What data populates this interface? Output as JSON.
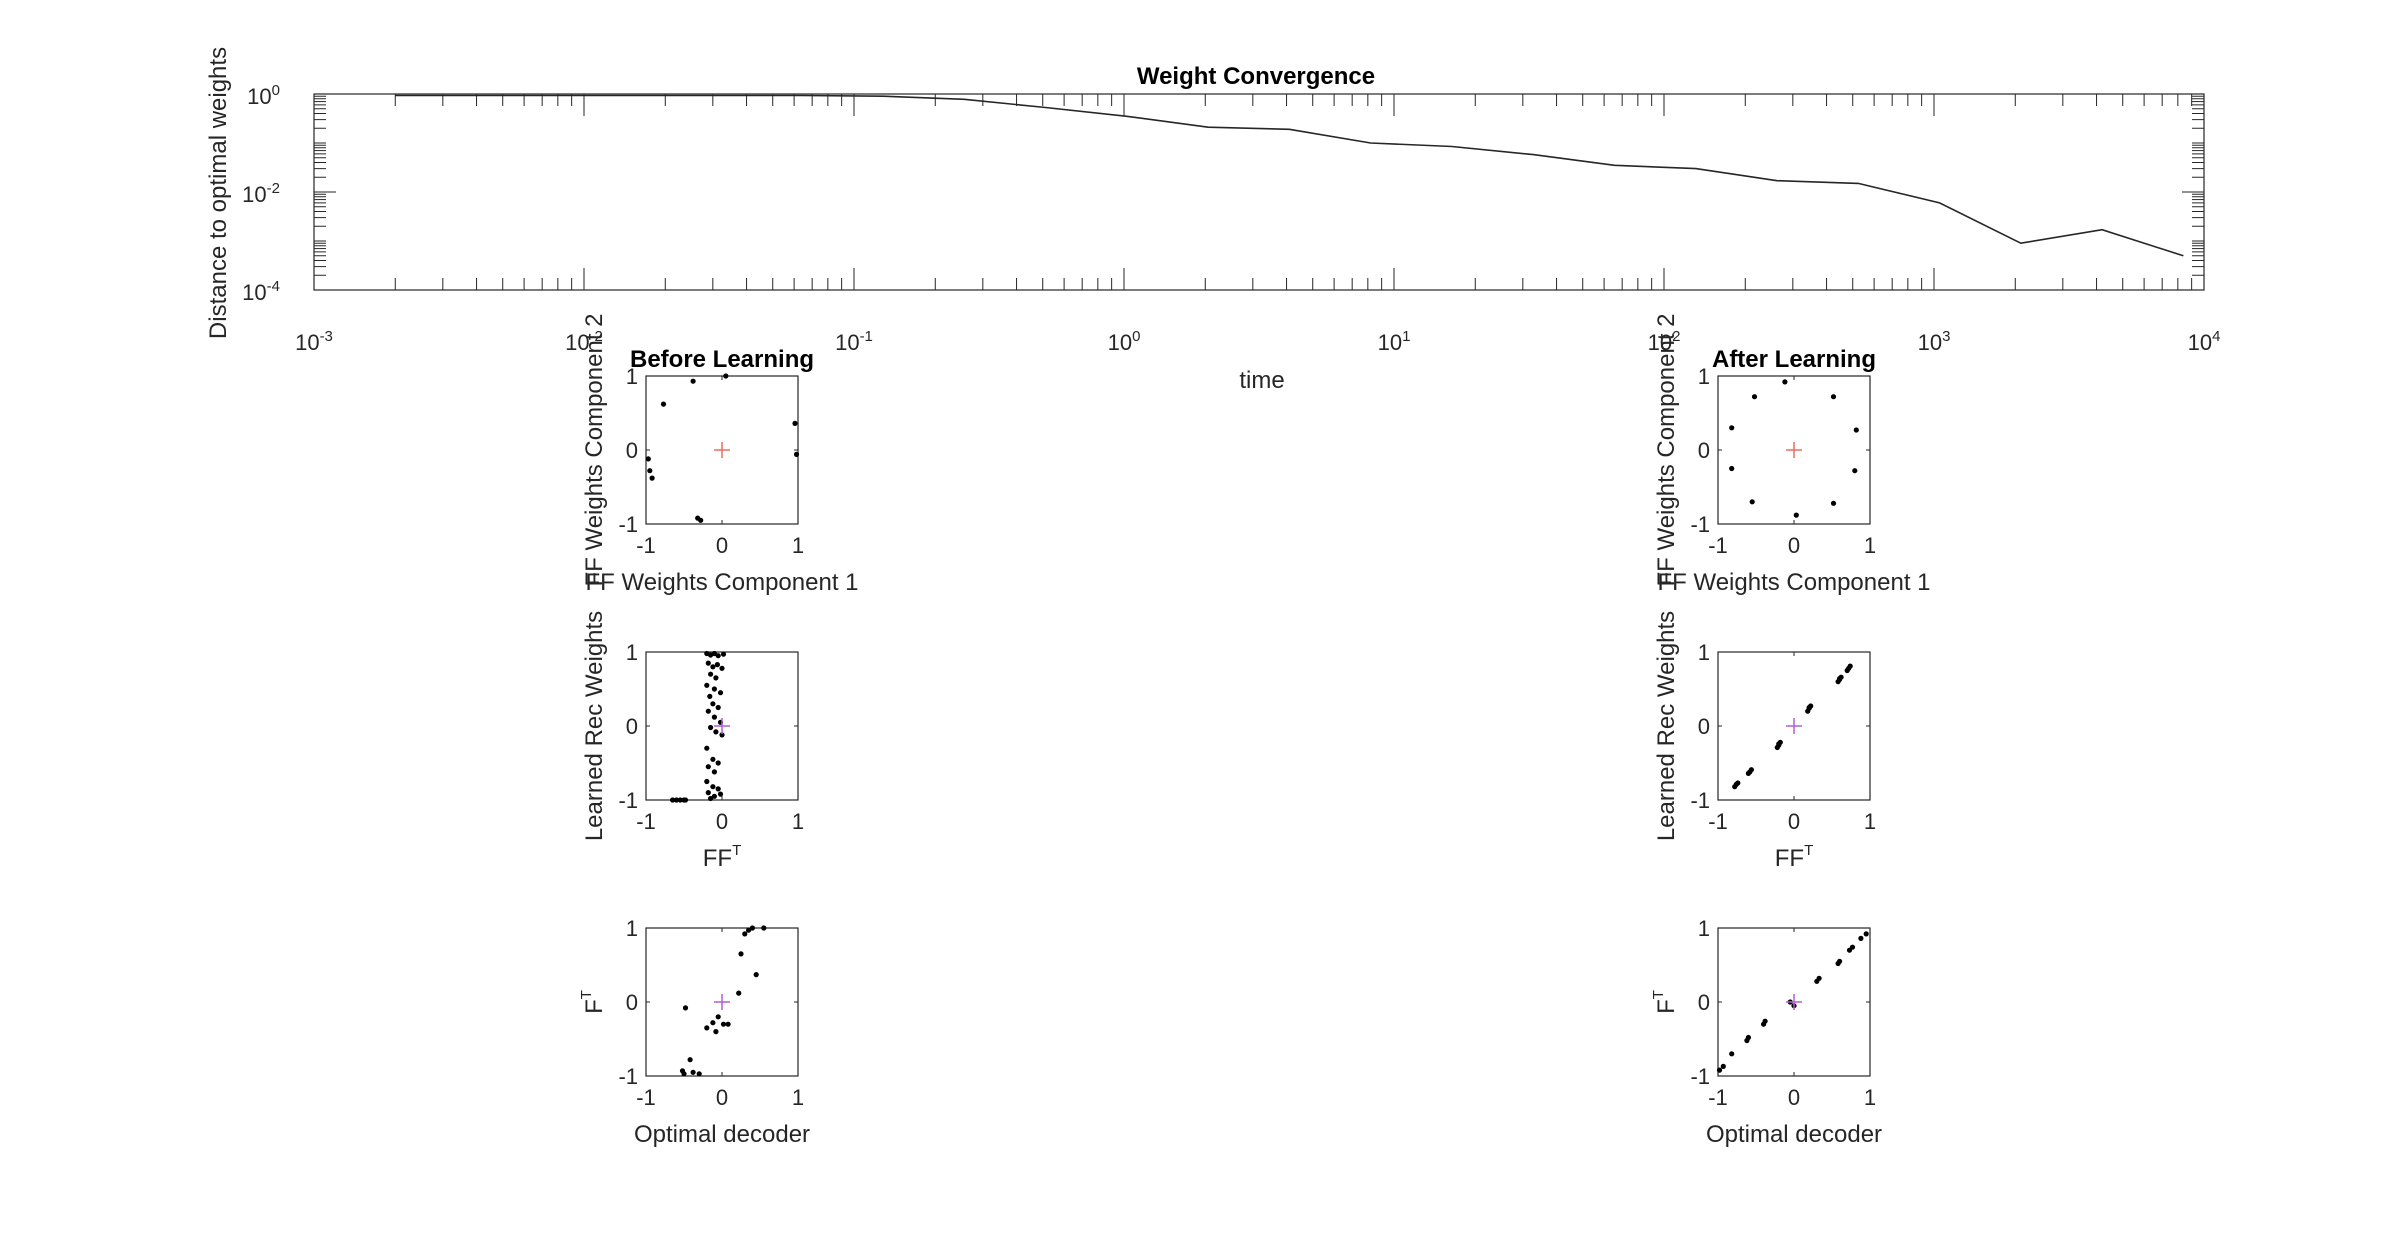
{
  "chart_data": [
    {
      "type": "line",
      "title": "Weight Convergence",
      "xlabel": "time",
      "ylabel": "Distance to optimal weights",
      "xscale": "log",
      "yscale": "log",
      "xlim": [
        0.001,
        10000
      ],
      "ylim": [
        0.0001,
        1
      ],
      "xtick_labels": [
        {
          "base": "10",
          "exp": "-3"
        },
        {
          "base": "10",
          "exp": "-2"
        },
        {
          "base": "10",
          "exp": "-1"
        },
        {
          "base": "10",
          "exp": "0"
        },
        {
          "base": "10",
          "exp": "1"
        },
        {
          "base": "10",
          "exp": "2"
        },
        {
          "base": "10",
          "exp": "3"
        },
        {
          "base": "10",
          "exp": "4"
        }
      ],
      "ytick_labels": [
        {
          "base": "10",
          "exp": "-4"
        },
        {
          "base": "10",
          "exp": "-2"
        },
        {
          "base": "10",
          "exp": "0"
        }
      ],
      "series": [
        {
          "x": [
            0.002,
            0.004,
            0.008,
            0.016,
            0.032,
            0.064,
            0.128,
            0.256,
            0.512,
            1.024,
            2.048,
            4.096,
            8.192,
            16.38,
            32.77,
            65.54,
            131.1,
            262.1,
            524.3,
            1049,
            2097,
            4194,
            8389
          ],
          "y": [
            0.93,
            0.93,
            0.93,
            0.93,
            0.93,
            0.93,
            0.9,
            0.78,
            0.53,
            0.35,
            0.21,
            0.19,
            0.1,
            0.085,
            0.058,
            0.035,
            0.03,
            0.017,
            0.015,
            0.006,
            0.0009,
            0.0017,
            0.0005
          ],
          "color": "#262626"
        }
      ]
    },
    {
      "type": "scatter",
      "title": "Before Learning",
      "xlabel": "FF Weights Component 1",
      "ylabel": "FF Weights Component 2",
      "xlim": [
        -1,
        1
      ],
      "ylim": [
        -1,
        1
      ],
      "tick_labels": [
        "-1",
        "0",
        "1"
      ],
      "points": [
        [
          -0.97,
          -0.12
        ],
        [
          -0.95,
          -0.28
        ],
        [
          -0.92,
          -0.38
        ],
        [
          -0.77,
          0.62
        ],
        [
          -0.38,
          0.93
        ],
        [
          -0.32,
          -0.92
        ],
        [
          -0.28,
          -0.95
        ],
        [
          0.05,
          1.0
        ],
        [
          0.96,
          0.36
        ],
        [
          0.98,
          -0.06
        ]
      ],
      "origin_marker": {
        "x": 0,
        "y": 0,
        "color": "#e8705a"
      }
    },
    {
      "type": "scatter",
      "title": "After Learning",
      "xlabel": "FF Weights Component 1",
      "ylabel": "FF Weights Component 2",
      "xlim": [
        -1,
        1
      ],
      "ylim": [
        -1,
        1
      ],
      "tick_labels": [
        "-1",
        "0",
        "1"
      ],
      "points": [
        [
          -0.12,
          0.92
        ],
        [
          0.52,
          0.72
        ],
        [
          0.82,
          0.27
        ],
        [
          0.8,
          -0.28
        ],
        [
          0.52,
          -0.72
        ],
        [
          0.03,
          -0.88
        ],
        [
          -0.55,
          -0.7
        ],
        [
          -0.82,
          -0.25
        ],
        [
          -0.82,
          0.3
        ],
        [
          -0.52,
          0.72
        ]
      ],
      "origin_marker": {
        "x": 0,
        "y": 0,
        "color": "#e8705a"
      }
    },
    {
      "type": "scatter",
      "title": "",
      "xlabel": "FF",
      "xlabel_sup": "T",
      "ylabel": "Learned Rec Weights",
      "xlim": [
        -1,
        1
      ],
      "ylim": [
        -1,
        1
      ],
      "tick_labels": [
        "-1",
        "0",
        "1"
      ],
      "points": [
        [
          -0.65,
          -1.0
        ],
        [
          -0.6,
          -1.0
        ],
        [
          -0.55,
          -1.0
        ],
        [
          -0.5,
          -1.0
        ],
        [
          -0.48,
          -1.0
        ],
        [
          -0.2,
          0.98
        ],
        [
          -0.15,
          0.96
        ],
        [
          -0.1,
          0.98
        ],
        [
          -0.05,
          0.95
        ],
        [
          0.02,
          0.97
        ],
        [
          -0.18,
          0.85
        ],
        [
          -0.12,
          0.8
        ],
        [
          -0.06,
          0.83
        ],
        [
          0.0,
          0.78
        ],
        [
          -0.15,
          0.7
        ],
        [
          -0.08,
          0.65
        ],
        [
          -0.2,
          0.55
        ],
        [
          -0.1,
          0.5
        ],
        [
          -0.02,
          0.45
        ],
        [
          -0.16,
          0.4
        ],
        [
          -0.12,
          0.3
        ],
        [
          -0.05,
          0.25
        ],
        [
          -0.18,
          0.2
        ],
        [
          -0.1,
          0.12
        ],
        [
          -0.02,
          0.05
        ],
        [
          -0.15,
          -0.02
        ],
        [
          -0.08,
          -0.08
        ],
        [
          0.0,
          -0.12
        ],
        [
          -0.2,
          -0.3
        ],
        [
          -0.12,
          -0.45
        ],
        [
          -0.05,
          -0.5
        ],
        [
          -0.18,
          -0.55
        ],
        [
          -0.1,
          -0.62
        ],
        [
          -0.2,
          -0.75
        ],
        [
          -0.12,
          -0.82
        ],
        [
          -0.05,
          -0.85
        ],
        [
          -0.18,
          -0.9
        ],
        [
          -0.1,
          -0.95
        ],
        [
          -0.02,
          -0.92
        ],
        [
          -0.15,
          -0.98
        ]
      ],
      "origin_marker": {
        "x": 0,
        "y": 0,
        "color": "#b05fd6"
      }
    },
    {
      "type": "scatter",
      "title": "",
      "xlabel": "FF",
      "xlabel_sup": "T",
      "ylabel": "Learned Rec Weights",
      "xlim": [
        -1,
        1
      ],
      "ylim": [
        -1,
        1
      ],
      "tick_labels": [
        "-1",
        "0",
        "1"
      ],
      "points": [
        [
          -0.78,
          -0.82
        ],
        [
          -0.76,
          -0.79
        ],
        [
          -0.74,
          -0.77
        ],
        [
          -0.6,
          -0.64
        ],
        [
          -0.58,
          -0.62
        ],
        [
          -0.56,
          -0.59
        ],
        [
          -0.22,
          -0.29
        ],
        [
          -0.2,
          -0.26
        ],
        [
          -0.18,
          -0.22
        ],
        [
          -0.2,
          -0.24
        ],
        [
          0.18,
          0.2
        ],
        [
          0.2,
          0.24
        ],
        [
          0.22,
          0.27
        ],
        [
          0.2,
          0.25
        ],
        [
          0.58,
          0.6
        ],
        [
          0.6,
          0.63
        ],
        [
          0.62,
          0.66
        ],
        [
          0.6,
          0.64
        ],
        [
          0.7,
          0.75
        ],
        [
          0.72,
          0.78
        ],
        [
          0.74,
          0.81
        ]
      ],
      "origin_marker": {
        "x": 0,
        "y": 0,
        "color": "#b05fd6"
      }
    },
    {
      "type": "scatter",
      "title": "",
      "xlabel": "Optimal decoder",
      "ylabel": "F",
      "ylabel_sup": "T",
      "xlim": [
        -1,
        1
      ],
      "ylim": [
        -1,
        1
      ],
      "tick_labels": [
        "-1",
        "0",
        "1"
      ],
      "points": [
        [
          -0.52,
          -0.93
        ],
        [
          -0.5,
          -0.97
        ],
        [
          -0.42,
          -0.78
        ],
        [
          -0.38,
          -0.95
        ],
        [
          -0.3,
          -0.97
        ],
        [
          -0.48,
          -0.08
        ],
        [
          -0.2,
          -0.35
        ],
        [
          -0.12,
          -0.28
        ],
        [
          -0.05,
          -0.2
        ],
        [
          -0.08,
          -0.4
        ],
        [
          0.02,
          -0.3
        ],
        [
          0.08,
          -0.3
        ],
        [
          0.22,
          0.12
        ],
        [
          0.45,
          0.37
        ],
        [
          0.25,
          0.65
        ],
        [
          0.3,
          0.92
        ],
        [
          0.35,
          0.97
        ],
        [
          0.4,
          1.0
        ],
        [
          0.55,
          1.0
        ]
      ],
      "origin_marker": {
        "x": 0,
        "y": 0,
        "color": "#b05fd6"
      }
    },
    {
      "type": "scatter",
      "title": "",
      "xlabel": "Optimal decoder",
      "ylabel": "F",
      "ylabel_sup": "T",
      "xlim": [
        -1,
        1
      ],
      "ylim": [
        -1,
        1
      ],
      "tick_labels": [
        "-1",
        "0",
        "1"
      ],
      "points": [
        [
          -0.98,
          -0.92
        ],
        [
          -0.93,
          -0.87
        ],
        [
          -0.82,
          -0.7
        ],
        [
          -0.62,
          -0.52
        ],
        [
          -0.6,
          -0.48
        ],
        [
          -0.4,
          -0.3
        ],
        [
          -0.38,
          -0.26
        ],
        [
          -0.05,
          0.0
        ],
        [
          0.0,
          -0.05
        ],
        [
          0.3,
          0.28
        ],
        [
          0.33,
          0.32
        ],
        [
          0.58,
          0.52
        ],
        [
          0.6,
          0.55
        ],
        [
          0.73,
          0.7
        ],
        [
          0.77,
          0.74
        ],
        [
          0.88,
          0.86
        ],
        [
          0.95,
          0.92
        ]
      ],
      "origin_marker": {
        "x": 0,
        "y": 0,
        "color": "#b05fd6"
      }
    }
  ]
}
